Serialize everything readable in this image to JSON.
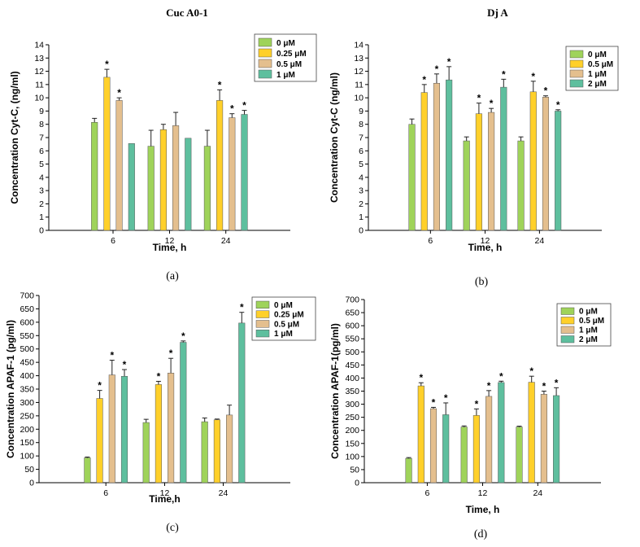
{
  "titles": {
    "left": "Cuc A0-1",
    "right": "Dj A"
  },
  "colors": {
    "c0": "#9fd35a",
    "c1": "#ffd02a",
    "c2": "#e4bf8e",
    "c3": "#5ebf9e"
  },
  "chart_data": [
    {
      "id": "a",
      "type": "bar",
      "letter": "(a)",
      "xlabel": "Time, h",
      "ylabel": "Concentration Cyt-C, (ng/ml)",
      "categories": [
        "6",
        "12",
        "24"
      ],
      "ylim": [
        0,
        14
      ],
      "ystep": 1,
      "series": [
        {
          "name": "0 μM",
          "values": [
            8.15,
            6.35,
            6.35
          ],
          "errors": [
            0.3,
            1.2,
            1.2
          ],
          "stars": [
            false,
            false,
            false
          ]
        },
        {
          "name": "0.25 μM",
          "values": [
            11.55,
            7.6,
            9.8
          ],
          "errors": [
            0.6,
            0.4,
            0.8
          ],
          "stars": [
            true,
            false,
            true
          ]
        },
        {
          "name": "0.5 μM",
          "values": [
            9.8,
            7.9,
            8.5
          ],
          "errors": [
            0.2,
            1.0,
            0.3
          ],
          "stars": [
            true,
            false,
            true
          ]
        },
        {
          "name": "1 μM",
          "values": [
            6.55,
            6.95,
            8.75
          ],
          "errors": [
            0,
            0,
            0.3
          ],
          "stars": [
            false,
            false,
            true
          ]
        }
      ]
    },
    {
      "id": "b",
      "type": "bar",
      "letter": "(b)",
      "xlabel": "Time, h",
      "ylabel": "Concentration Cyt-C (ng/ml)",
      "categories": [
        "6",
        "12",
        "24"
      ],
      "ylim": [
        0,
        14
      ],
      "ystep": 1,
      "series": [
        {
          "name": "0 μM",
          "values": [
            8.0,
            6.75,
            6.75
          ],
          "errors": [
            0.4,
            0.3,
            0.3
          ],
          "stars": [
            false,
            false,
            false
          ]
        },
        {
          "name": "0.5 μM",
          "values": [
            10.4,
            8.8,
            10.45
          ],
          "errors": [
            0.6,
            0.8,
            0.8
          ],
          "stars": [
            true,
            true,
            true
          ]
        },
        {
          "name": "1 μM",
          "values": [
            11.1,
            8.9,
            10.05
          ],
          "errors": [
            0.7,
            0.3,
            0.1
          ],
          "stars": [
            true,
            true,
            true
          ]
        },
        {
          "name": "2 μM",
          "values": [
            11.35,
            10.8,
            9.0
          ],
          "errors": [
            1.0,
            0.6,
            0.1
          ],
          "stars": [
            true,
            true,
            true
          ]
        }
      ]
    },
    {
      "id": "c",
      "type": "bar",
      "letter": "(c)",
      "xlabel": "Time,h",
      "ylabel": "Concentration APAF-1 (pg/ml)",
      "categories": [
        "6",
        "12",
        "24"
      ],
      "ylim": [
        0,
        700
      ],
      "ystep": 50,
      "series": [
        {
          "name": "0 μM",
          "values": [
            93,
            225,
            228
          ],
          "errors": [
            3,
            12,
            14
          ],
          "stars": [
            false,
            false,
            false
          ]
        },
        {
          "name": "0.25 μM",
          "values": [
            315,
            367,
            235
          ],
          "errors": [
            30,
            12,
            3
          ],
          "stars": [
            true,
            true,
            false
          ]
        },
        {
          "name": "0.5 μM",
          "values": [
            403,
            410,
            253
          ],
          "errors": [
            55,
            55,
            37
          ],
          "stars": [
            true,
            true,
            false
          ]
        },
        {
          "name": "1 μM",
          "values": [
            398,
            525,
            597
          ],
          "errors": [
            25,
            5,
            40
          ],
          "stars": [
            true,
            true,
            true
          ]
        }
      ]
    },
    {
      "id": "d",
      "type": "bar",
      "letter": "(d)",
      "xlabel": "Time, h",
      "ylabel": "Concentration APAF-1(pg/ml)",
      "categories": [
        "6",
        "12",
        "24"
      ],
      "ylim": [
        0,
        700
      ],
      "ystep": 50,
      "series": [
        {
          "name": "0 μM",
          "values": [
            93,
            213,
            213
          ],
          "errors": [
            3,
            4,
            3
          ],
          "stars": [
            false,
            false,
            false
          ]
        },
        {
          "name": "0.5 μM",
          "values": [
            370,
            257,
            384
          ],
          "errors": [
            12,
            25,
            23
          ],
          "stars": [
            true,
            true,
            true
          ]
        },
        {
          "name": "1 μM",
          "values": [
            283,
            330,
            338
          ],
          "errors": [
            5,
            22,
            12
          ],
          "stars": [
            true,
            true,
            true
          ]
        },
        {
          "name": "2 μM",
          "values": [
            260,
            383,
            333
          ],
          "errors": [
            45,
            5,
            30
          ],
          "stars": [
            true,
            true,
            true
          ]
        }
      ]
    }
  ]
}
